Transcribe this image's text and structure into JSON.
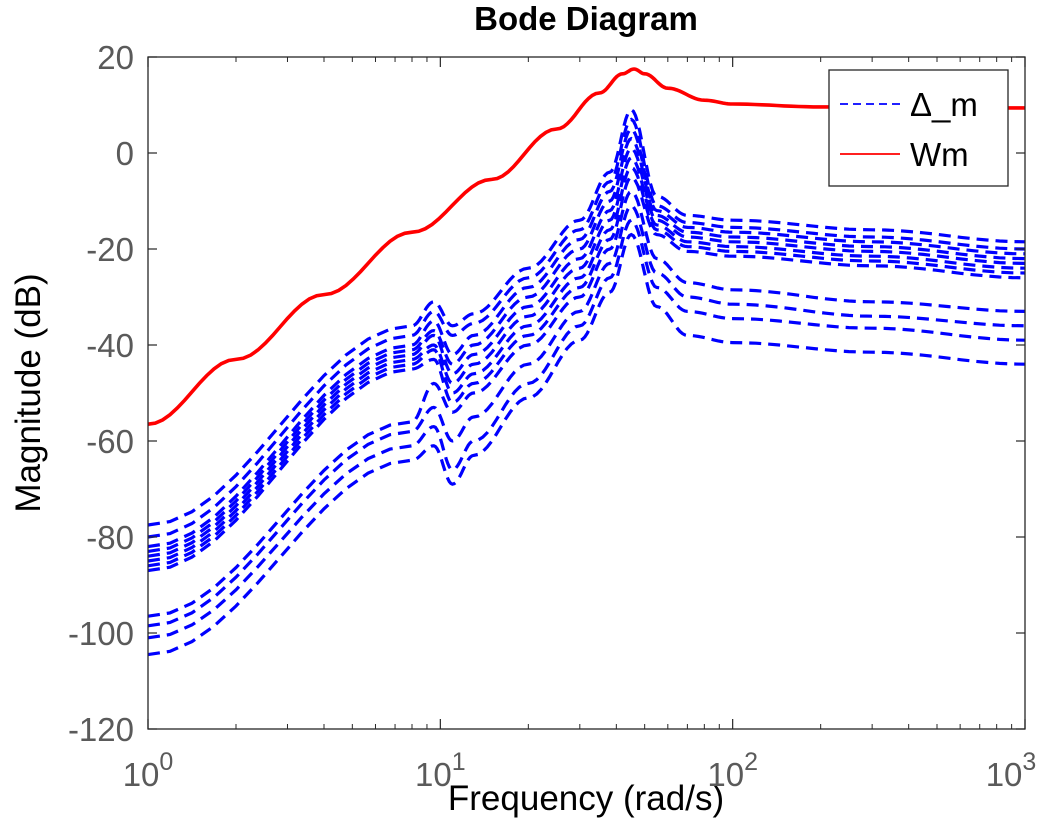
{
  "chart_data": {
    "type": "line",
    "title": "Bode Diagram",
    "xlabel": "Frequency  (rad/s)",
    "ylabel": "Magnitude (dB)",
    "xscale": "log",
    "xlim": [
      1,
      1000
    ],
    "ylim": [
      -120,
      20
    ],
    "xticks": [
      {
        "base": "10",
        "exp": "0",
        "value": 1
      },
      {
        "base": "10",
        "exp": "1",
        "value": 10
      },
      {
        "base": "10",
        "exp": "2",
        "value": 100
      },
      {
        "base": "10",
        "exp": "3",
        "value": 1000
      }
    ],
    "yticks": [
      {
        "label": "20",
        "value": 20
      },
      {
        "label": "0",
        "value": 0
      },
      {
        "label": "-20",
        "value": -20
      },
      {
        "label": "-40",
        "value": -40
      },
      {
        "label": "-60",
        "value": -60
      },
      {
        "label": "-80",
        "value": -80
      },
      {
        "label": "-100",
        "value": -100
      },
      {
        "label": "-120",
        "value": -120
      }
    ],
    "grid": false,
    "legend": {
      "position": "top-right",
      "entries": [
        {
          "label": "Δ_m",
          "color": "#0000ff",
          "style": "dashed"
        },
        {
          "label": "Wm",
          "color": "#ff0000",
          "style": "solid"
        }
      ]
    },
    "series": [
      {
        "name": "Wm",
        "color": "#ff0000",
        "style": "solid",
        "x": [
          1,
          2,
          4,
          8,
          15,
          25,
          35,
          42,
          46,
          50,
          60,
          80,
          100,
          200,
          500,
          1000
        ],
        "y": [
          -56.5,
          -43,
          -29.5,
          -16.5,
          -5.5,
          5,
          12.5,
          16.5,
          17.5,
          16.5,
          13.5,
          11,
          10.2,
          9.6,
          9.4,
          9.4
        ]
      }
    ],
    "families": [
      {
        "legend_label": "Δ_m",
        "color": "#0000ff",
        "style": "dashed",
        "members": [
          {
            "x": [
              1,
              8,
              9.5,
              11,
              13,
              20,
              30,
              38,
              45,
              55,
              70,
              100,
              300,
              1000
            ],
            "y": [
              -77.5,
              -36,
              -31,
              -36,
              -33.5,
              -24,
              -14,
              -4,
              9,
              -9,
              -13,
              -14,
              -16,
              -18.5
            ]
          },
          {
            "x": [
              1,
              8,
              9.5,
              11,
              13,
              20,
              30,
              38,
              45,
              55,
              70,
              100,
              300,
              1000
            ],
            "y": [
              -80,
              -38,
              -33,
              -38,
              -35.5,
              -26,
              -16,
              -6,
              7,
              -11,
              -14.5,
              -15.5,
              -17.5,
              -20
            ]
          },
          {
            "x": [
              1,
              8,
              9.5,
              11,
              13,
              20,
              30,
              38,
              45,
              55,
              70,
              100,
              300,
              1000
            ],
            "y": [
              -82,
              -40,
              -35,
              -42,
              -38,
              -28,
              -18,
              -8,
              5,
              -12,
              -15.5,
              -16.5,
              -18.5,
              -21
            ]
          },
          {
            "x": [
              1,
              8,
              9.5,
              11,
              13,
              20,
              30,
              38,
              45,
              55,
              70,
              100,
              300,
              1000
            ],
            "y": [
              -83,
              -41,
              -37,
              -44,
              -40,
              -30,
              -20,
              -10,
              3,
              -13,
              -16.5,
              -17.5,
              -19.5,
              -22
            ]
          },
          {
            "x": [
              1,
              8,
              9.5,
              11,
              13,
              20,
              30,
              38,
              45,
              55,
              70,
              100,
              300,
              1000
            ],
            "y": [
              -84,
              -42,
              -38,
              -46,
              -42,
              -32,
              -22,
              -12,
              1,
              -14,
              -17.5,
              -18.5,
              -20.5,
              -23
            ]
          },
          {
            "x": [
              1,
              8,
              9.5,
              11,
              13,
              20,
              30,
              38,
              45,
              55,
              70,
              100,
              300,
              1000
            ],
            "y": [
              -85,
              -43,
              -40,
              -48,
              -44,
              -34,
              -24,
              -14,
              -1,
              -15,
              -18.5,
              -19.5,
              -21.5,
              -24
            ]
          },
          {
            "x": [
              1,
              8,
              9.5,
              11,
              13,
              20,
              30,
              38,
              45,
              55,
              70,
              100,
              300,
              1000
            ],
            "y": [
              -86,
              -44,
              -41,
              -50,
              -46,
              -36,
              -26,
              -16,
              -3,
              -16,
              -19.5,
              -20.5,
              -22.5,
              -25
            ]
          },
          {
            "x": [
              1,
              8,
              9.5,
              11,
              13,
              20,
              30,
              38,
              45,
              55,
              70,
              100,
              300,
              1000
            ],
            "y": [
              -87,
              -45,
              -43,
              -52,
              -48,
              -38,
              -28,
              -18,
              -5,
              -17,
              -20.5,
              -21.5,
              -23.5,
              -26
            ]
          },
          {
            "x": [
              1,
              8,
              9.5,
              11,
              13,
              20,
              30,
              38,
              45,
              55,
              70,
              100,
              300,
              1000
            ],
            "y": [
              -96.5,
              -56,
              -48,
              -54,
              -50,
              -40,
              -30,
              -20,
              -8,
              -22,
              -27,
              -28.5,
              -31,
              -33
            ]
          },
          {
            "x": [
              1,
              8,
              9.5,
              11,
              13,
              20,
              30,
              38,
              45,
              55,
              70,
              100,
              300,
              1000
            ],
            "y": [
              -98.5,
              -58,
              -53,
              -60,
              -55,
              -44,
              -33,
              -23,
              -11,
              -25,
              -30,
              -31.5,
              -34,
              -36
            ]
          },
          {
            "x": [
              1,
              8,
              9.5,
              11,
              13,
              20,
              30,
              38,
              45,
              55,
              70,
              100,
              300,
              1000
            ],
            "y": [
              -101,
              -61,
              -57,
              -66,
              -60,
              -48,
              -36,
              -26,
              -14,
              -28,
              -33,
              -34.5,
              -36.5,
              -39
            ]
          },
          {
            "x": [
              1,
              8,
              9.5,
              11,
              13,
              20,
              30,
              38,
              45,
              55,
              70,
              100,
              300,
              1000
            ],
            "y": [
              -104.5,
              -64,
              -61,
              -69,
              -63,
              -51,
              -39,
              -29,
              -17,
              -32,
              -38,
              -39.5,
              -41.5,
              -44
            ]
          }
        ]
      }
    ]
  }
}
